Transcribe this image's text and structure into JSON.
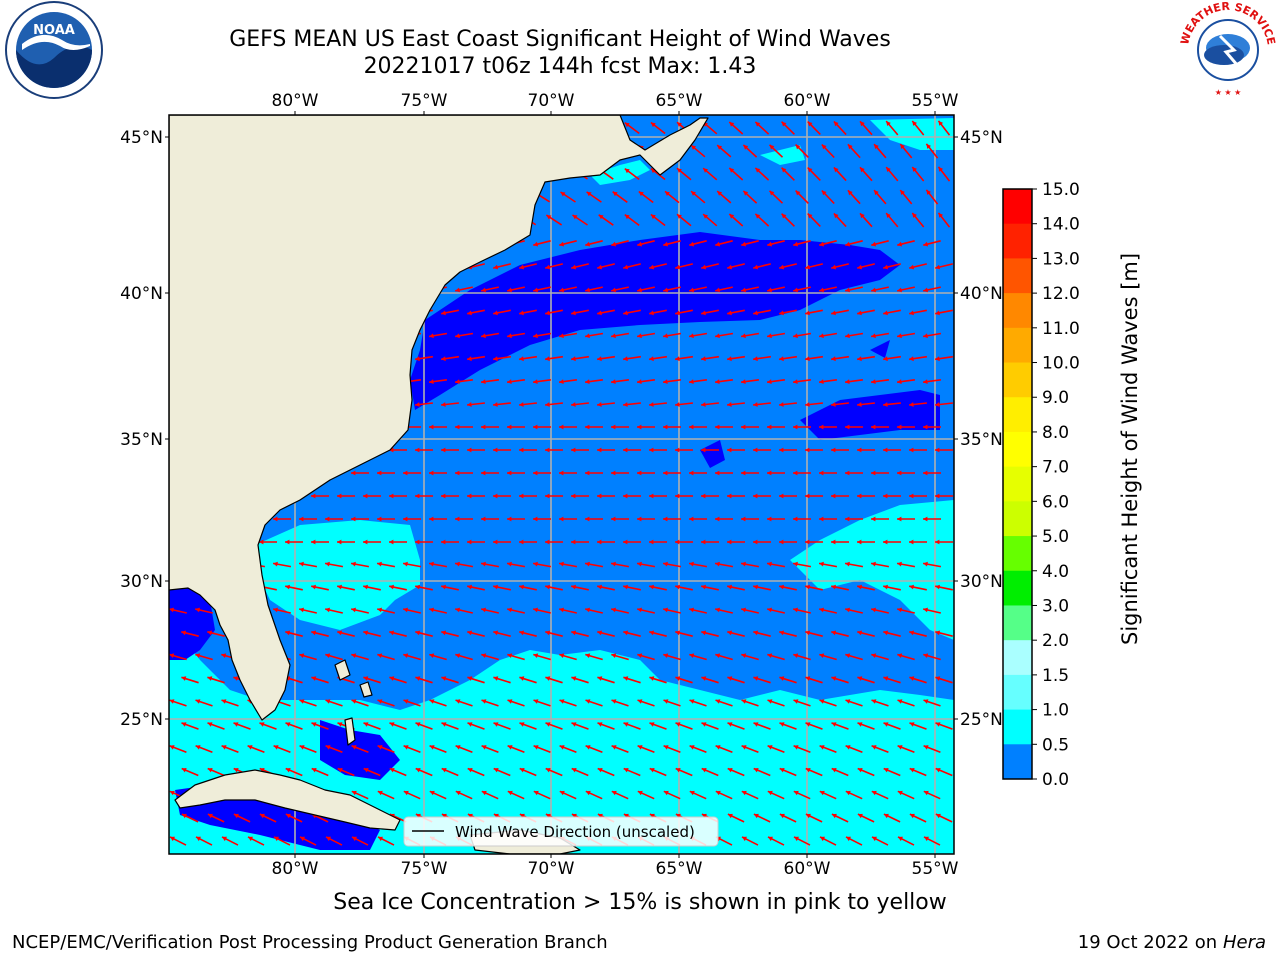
{
  "title": {
    "line1": "GEFS MEAN US East Coast Significant Height of Wind Waves",
    "line2": "20221017 t06z 144h fcst   Max: 1.43"
  },
  "map": {
    "lon_labels": [
      "80°W",
      "75°W",
      "70°W",
      "65°W",
      "60°W",
      "55°W"
    ],
    "lat_labels": [
      "45°N",
      "40°N",
      "35°N",
      "30°N",
      "25°N"
    ],
    "legend_label": "Wind Wave Direction (unscaled)",
    "colors": {
      "land": "#efedd9",
      "band_0_0p5": "#0000ff",
      "band_0p5_1": "#0080ff",
      "band_1_1p5": "#00ffff",
      "arrow": "#ff0000",
      "grid": "#b0b0b0"
    }
  },
  "colorbar": {
    "title": "Significant Height of Wind Waves [m]",
    "ticks": [
      "15.0",
      "14.0",
      "13.0",
      "12.0",
      "11.0",
      "10.0",
      "9.0",
      "8.0",
      "7.0",
      "6.0",
      "5.0",
      "4.0",
      "3.0",
      "2.0",
      "1.5",
      "1.0",
      "0.5",
      "0.0"
    ],
    "colors": [
      "#ff0000",
      "#ff2200",
      "#ff5500",
      "#ff8800",
      "#ffaa00",
      "#ffcc00",
      "#ffee00",
      "#ffff00",
      "#e6ff00",
      "#ccff00",
      "#66ff00",
      "#00ee00",
      "#55ff88",
      "#aaffff",
      "#66ffff",
      "#00ffff",
      "#0080ff",
      "#0000ff"
    ]
  },
  "caption": "Sea Ice Concentration > 15% is shown in pink to yellow",
  "footer": {
    "left": "NCEP/EMC/Verification Post Processing Product Generation Branch",
    "right_date": "19 Oct 2022 on ",
    "right_host": "Hera"
  },
  "logos": {
    "noaa": "NOAA",
    "nws": "NATIONAL WEATHER SERVICE"
  }
}
